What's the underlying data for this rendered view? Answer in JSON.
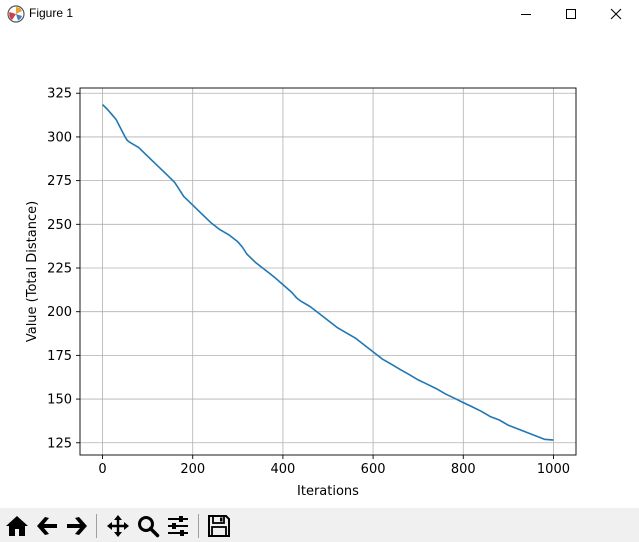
{
  "window": {
    "title": "Figure 1"
  },
  "toolbar": {
    "buttons": [
      {
        "name": "home-button",
        "icon": "home-icon"
      },
      {
        "name": "back-button",
        "icon": "arrow-left-icon"
      },
      {
        "name": "forward-button",
        "icon": "arrow-right-icon"
      },
      {
        "name": "pan-button",
        "icon": "move-icon"
      },
      {
        "name": "zoom-button",
        "icon": "magnifier-icon"
      },
      {
        "name": "configure-subplots-button",
        "icon": "sliders-icon"
      },
      {
        "name": "save-button",
        "icon": "floppy-disk-icon"
      }
    ]
  },
  "chart_data": {
    "type": "line",
    "title": "",
    "xlabel": "Iterations",
    "ylabel": "Value (Total Distance)",
    "xlim": [
      -50,
      1050
    ],
    "ylim": [
      118,
      328
    ],
    "xticks": [
      0,
      200,
      400,
      600,
      800,
      1000
    ],
    "yticks": [
      125,
      150,
      175,
      200,
      225,
      250,
      275,
      300,
      325
    ],
    "grid": true,
    "line_color": "#1f77b4",
    "series": [
      {
        "x": [
          0,
          10,
          20,
          30,
          40,
          50,
          55,
          60,
          80,
          100,
          120,
          140,
          160,
          175,
          180,
          200,
          220,
          240,
          260,
          280,
          300,
          310,
          320,
          340,
          360,
          380,
          400,
          420,
          430,
          440,
          460,
          480,
          500,
          520,
          540,
          560,
          580,
          600,
          620,
          640,
          660,
          680,
          700,
          720,
          740,
          760,
          780,
          800,
          820,
          840,
          860,
          880,
          900,
          920,
          940,
          960,
          980,
          1000
        ],
        "y": [
          318.5,
          316,
          313,
          310,
          305,
          300,
          298,
          297,
          294,
          289,
          284,
          279,
          274,
          268,
          266,
          261,
          256,
          251,
          247,
          244,
          240,
          237,
          233,
          228,
          224,
          220,
          215.5,
          211,
          208,
          206,
          203,
          199,
          195,
          191,
          188,
          185,
          181,
          177,
          173,
          170,
          167,
          164,
          161,
          158.5,
          156,
          153,
          150.5,
          148,
          145.5,
          143,
          140,
          138,
          135,
          133,
          131,
          129,
          127,
          126.5
        ]
      }
    ]
  }
}
